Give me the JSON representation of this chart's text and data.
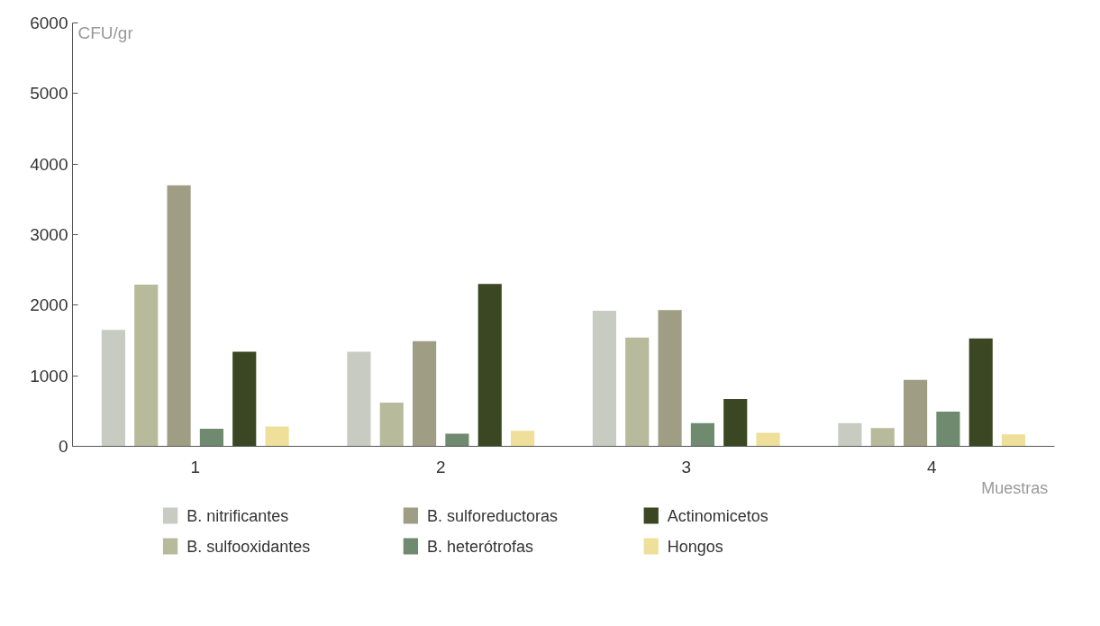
{
  "chart_data": {
    "type": "bar",
    "ylabel": "CFU/gr",
    "xlabel": "Muestras",
    "categories": [
      "1",
      "2",
      "3",
      "4"
    ],
    "series": [
      {
        "name": "B. nitrificantes",
        "color": "#c8cbc2",
        "values": [
          1650,
          1340,
          1920,
          330
        ]
      },
      {
        "name": "B. sulfooxidantes",
        "color": "#b7bb9c",
        "values": [
          2290,
          620,
          1540,
          260
        ]
      },
      {
        "name": "B. sulforeductoras",
        "color": "#a09d85",
        "values": [
          3700,
          1490,
          1930,
          940
        ]
      },
      {
        "name": "B. heterótrofas",
        "color": "#6f8a6e",
        "values": [
          250,
          180,
          330,
          490
        ]
      },
      {
        "name": "Actinomicetos",
        "color": "#3a4722",
        "values": [
          1340,
          2300,
          670,
          1530
        ]
      },
      {
        "name": "Hongos",
        "color": "#eedf9a",
        "values": [
          280,
          220,
          190,
          170
        ]
      }
    ],
    "ylim": [
      0,
      6000
    ],
    "yticks": [
      0,
      1000,
      2000,
      3000,
      4000,
      5000,
      6000
    ],
    "grid": false,
    "legend": "bottom"
  }
}
